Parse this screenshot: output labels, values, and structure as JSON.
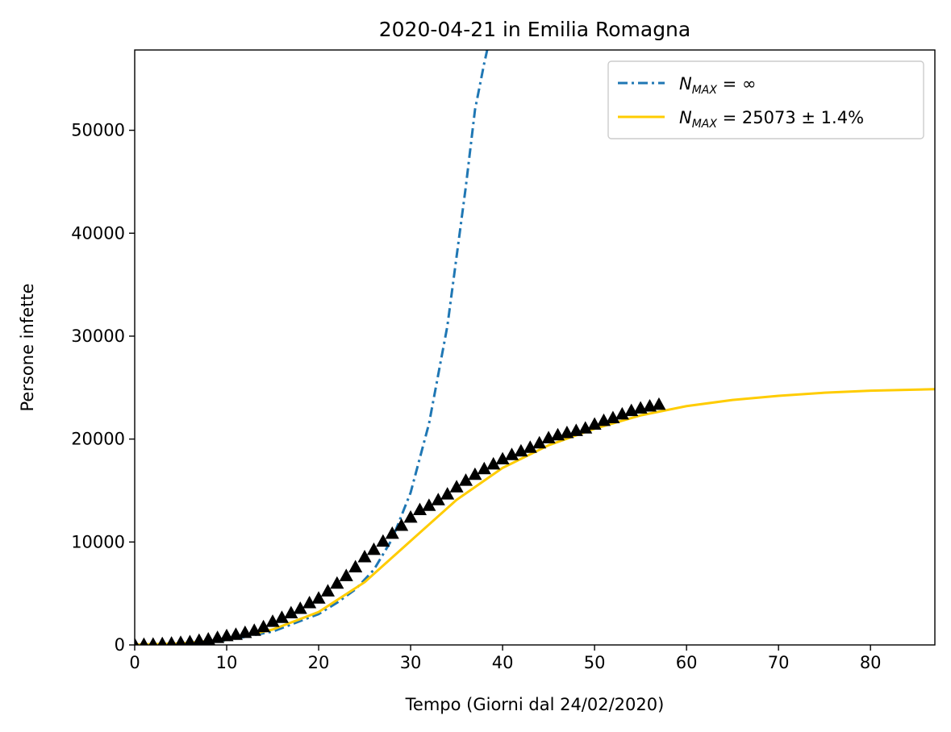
{
  "chart_data": {
    "type": "line",
    "title": "2020-04-21 in Emilia Romagna",
    "xlabel": "Tempo (Giorni dal 24/02/2020)",
    "ylabel": "Persone infette",
    "xlim": [
      0,
      87
    ],
    "ylim": [
      0,
      57800
    ],
    "xticks": [
      0,
      10,
      20,
      30,
      40,
      50,
      60,
      70,
      80
    ],
    "yticks": [
      0,
      10000,
      20000,
      30000,
      40000,
      50000
    ],
    "grid": false,
    "legend_position": "top-right",
    "series": [
      {
        "name": "N_MAX = ∞",
        "legend_main": "N",
        "legend_sub": "MAX",
        "legend_rest": " = ∞",
        "style": "dashdot",
        "color": "#1f77b4",
        "x": [
          0,
          5,
          10,
          15,
          20,
          22,
          24,
          26,
          28,
          30,
          32,
          34,
          36,
          37,
          38,
          38.5
        ],
        "y": [
          18,
          110,
          450,
          1300,
          3000,
          4100,
          5400,
          7300,
          10300,
          14800,
          21500,
          31000,
          44500,
          52000,
          56500,
          58500
        ]
      },
      {
        "name": "N_MAX = 25073 ± 1.4%",
        "legend_main": "N",
        "legend_sub": "MAX",
        "legend_rest": " = 25073 ± 1.4%",
        "style": "solid",
        "color": "#ffcc00",
        "x": [
          0,
          5,
          10,
          15,
          20,
          25,
          30,
          35,
          40,
          45,
          50,
          55,
          60,
          65,
          70,
          75,
          80,
          87
        ],
        "y": [
          30,
          150,
          500,
          1500,
          3200,
          6100,
          10100,
          14100,
          17200,
          19400,
          21000,
          22300,
          23200,
          23800,
          24200,
          24500,
          24700,
          24850
        ]
      },
      {
        "name": "data",
        "style": "markers",
        "marker": "triangle",
        "color": "#000000",
        "x": [
          0,
          1,
          2,
          3,
          4,
          5,
          6,
          7,
          8,
          9,
          10,
          11,
          12,
          13,
          14,
          15,
          16,
          17,
          18,
          19,
          20,
          21,
          22,
          23,
          24,
          25,
          26,
          27,
          28,
          29,
          30,
          31,
          32,
          33,
          34,
          35,
          36,
          37,
          38,
          39,
          40,
          41,
          42,
          43,
          44,
          45,
          46,
          47,
          48,
          49,
          50,
          51,
          52,
          53,
          54,
          55,
          56,
          57
        ],
        "y": [
          18,
          26,
          47,
          97,
          145,
          217,
          285,
          420,
          544,
          698,
          870,
          1000,
          1180,
          1386,
          1739,
          2263,
          2644,
          3093,
          3522,
          4072,
          4525,
          5214,
          5968,
          6705,
          7555,
          8535,
          9254,
          10054,
          10816,
          11588,
          12383,
          13119,
          13531,
          14074,
          14635,
          15333,
          15963,
          16540,
          17089,
          17556,
          18047,
          18466,
          18819,
          19167,
          19598,
          20102,
          20381,
          20600,
          20806,
          21043,
          21421,
          21785,
          22045,
          22405,
          22742,
          22990,
          23180,
          23350
        ]
      }
    ]
  }
}
